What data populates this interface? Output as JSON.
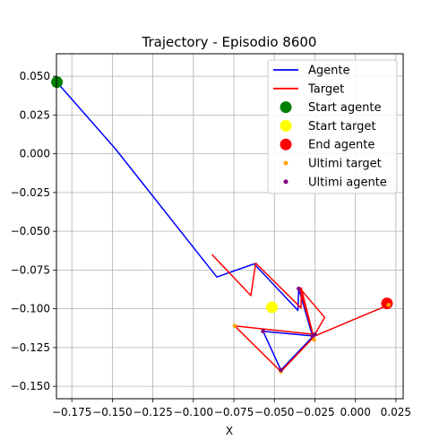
{
  "chart_data": {
    "type": "line",
    "title": "Trajectory - Episodio 8600",
    "xlabel": "X",
    "ylabel": "",
    "xlim": [
      -0.1845,
      0.0295
    ],
    "ylim": [
      -0.158,
      0.0645
    ],
    "grid": true,
    "legend_placement": "top-right",
    "x_ticks": [
      -0.175,
      -0.15,
      -0.125,
      -0.1,
      -0.075,
      -0.05,
      -0.025,
      0.0,
      0.025
    ],
    "x_tick_labels": [
      "−0.175",
      "−0.150",
      "−0.125",
      "−0.100",
      "−0.075",
      "−0.050",
      "−0.025",
      "0.000",
      "0.025"
    ],
    "y_ticks": [
      0.05,
      0.025,
      0.0,
      -0.025,
      -0.05,
      -0.075,
      -0.1,
      -0.125,
      -0.15
    ],
    "y_tick_labels": [
      "0.050",
      "0.025",
      "0.000",
      "−0.025",
      "−0.050",
      "−0.075",
      "−0.100",
      "−0.125",
      "−0.150"
    ],
    "series": [
      {
        "name": "Agente",
        "kind": "line",
        "color": "#0000ff",
        "points": [
          [
            -0.1842,
            0.0462
          ],
          [
            -0.148,
            0.003
          ],
          [
            -0.0855,
            -0.0795
          ],
          [
            -0.0625,
            -0.071
          ],
          [
            -0.0355,
            -0.101
          ],
          [
            -0.035,
            -0.087
          ],
          [
            -0.0265,
            -0.1175
          ],
          [
            -0.057,
            -0.1145
          ],
          [
            -0.046,
            -0.1395
          ],
          [
            -0.025,
            -0.1165
          ]
        ]
      },
      {
        "name": "Target",
        "kind": "line",
        "color": "#ff0000",
        "points": [
          [
            -0.0885,
            -0.065
          ],
          [
            -0.0645,
            -0.0915
          ],
          [
            -0.0615,
            -0.0705
          ],
          [
            -0.0335,
            -0.0995
          ],
          [
            -0.0335,
            -0.0865
          ],
          [
            -0.026,
            -0.117
          ],
          [
            -0.0345,
            -0.0865
          ],
          [
            -0.019,
            -0.1055
          ],
          [
            -0.025,
            -0.1165
          ],
          [
            -0.0745,
            -0.111
          ],
          [
            -0.046,
            -0.1405
          ],
          [
            -0.025,
            -0.1175
          ],
          [
            0.0205,
            -0.0975
          ]
        ]
      }
    ],
    "markers": [
      {
        "name": "Start agente",
        "color": "#008000",
        "x": -0.1842,
        "y": 0.0462
      },
      {
        "name": "Start target",
        "color": "#ffff00",
        "x": -0.0515,
        "y": -0.099
      },
      {
        "name": "End agente",
        "color": "#ff0000",
        "x": 0.0195,
        "y": -0.0965
      }
    ],
    "scatter": [
      {
        "name": "Ultimi target",
        "color": "#ffa500",
        "points": [
          [
            -0.0745,
            -0.111
          ],
          [
            -0.046,
            -0.1405
          ],
          [
            -0.0255,
            -0.12
          ],
          [
            0.0205,
            -0.0975
          ]
        ]
      },
      {
        "name": "Ultimi agente",
        "color": "#800080",
        "points": [
          [
            -0.057,
            -0.1145
          ],
          [
            -0.035,
            -0.087
          ],
          [
            -0.046,
            -0.1395
          ],
          [
            -0.0265,
            -0.1175
          ],
          [
            -0.025,
            -0.1165
          ]
        ]
      }
    ],
    "legend": [
      {
        "label": "Agente",
        "kind": "line",
        "color": "#0000ff"
      },
      {
        "label": "Target",
        "kind": "line",
        "color": "#ff0000"
      },
      {
        "label": "Start agente",
        "kind": "big",
        "color": "#008000"
      },
      {
        "label": "Start target",
        "kind": "big",
        "color": "#ffff00"
      },
      {
        "label": "End agente",
        "kind": "big",
        "color": "#ff0000"
      },
      {
        "label": "Ultimi target",
        "kind": "small",
        "color": "#ffa500"
      },
      {
        "label": "Ultimi agente",
        "kind": "small",
        "color": "#800080"
      }
    ]
  }
}
